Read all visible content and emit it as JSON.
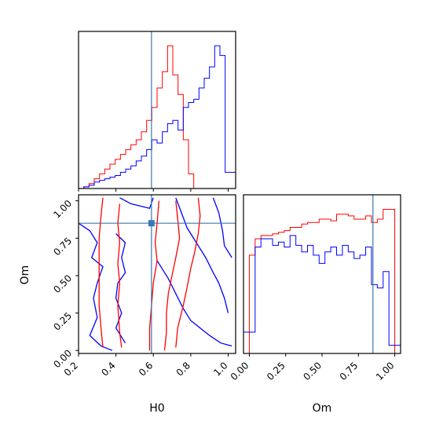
{
  "chart_data": [
    {
      "panel": "H0-marginal",
      "type": "histogram",
      "xlim": [
        0.2,
        1.04
      ],
      "bin_edges_start": 0.2,
      "bin_width": 0.028,
      "series": [
        {
          "color": "#ff0000",
          "values": [
            0,
            0.01,
            0.03,
            0.06,
            0.09,
            0.12,
            0.15,
            0.18,
            0.21,
            0.24,
            0.27,
            0.3,
            0.35,
            0.42,
            0.5,
            0.62,
            0.72,
            0.88,
            0.7,
            0.58,
            0.3,
            0.09,
            0,
            0,
            0,
            0,
            0,
            0,
            0,
            0
          ]
        },
        {
          "color": "#0000ff",
          "values": [
            0,
            0.01,
            0.02,
            0.04,
            0.05,
            0.06,
            0.07,
            0.08,
            0.1,
            0.12,
            0.14,
            0.17,
            0.2,
            0.24,
            0.3,
            0.28,
            0.35,
            0.4,
            0.42,
            0.36,
            0.5,
            0.53,
            0.55,
            0.62,
            0.68,
            0.75,
            0.88,
            0.82,
            0.1,
            0.1
          ]
        }
      ],
      "truth": 0.59
    },
    {
      "panel": "H0-Om-2d",
      "type": "contour",
      "xlabel": "H0",
      "ylabel": "Om",
      "xlim": [
        0.2,
        1.04
      ],
      "ylim": [
        -0.02,
        1.04
      ],
      "xticks": [
        "0.2",
        "0.4",
        "0.6",
        "0.8",
        "1.0"
      ],
      "yticks": [
        "0.00",
        "0.25",
        "0.50",
        "0.75",
        "1.00"
      ],
      "xtick_values": [
        0.2,
        0.4,
        0.6,
        0.8,
        1.0
      ],
      "ytick_values": [
        0,
        0.25,
        0.5,
        0.75,
        1.0
      ],
      "truth": [
        0.59,
        0.85
      ],
      "red_contours": [
        [
          [
            0.33,
            1.02
          ],
          [
            0.32,
            0.9
          ],
          [
            0.31,
            0.75
          ],
          [
            0.31,
            0.6
          ],
          [
            0.31,
            0.45
          ],
          [
            0.31,
            0.3
          ],
          [
            0.32,
            0.15
          ],
          [
            0.33,
            0.02
          ]
        ],
        [
          [
            0.42,
            0.98
          ],
          [
            0.41,
            0.85
          ],
          [
            0.42,
            0.72
          ],
          [
            0.41,
            0.58
          ],
          [
            0.42,
            0.45
          ],
          [
            0.41,
            0.3
          ],
          [
            0.42,
            0.12
          ],
          [
            0.43,
            0.02
          ]
        ],
        [
          [
            0.63,
            1.0
          ],
          [
            0.62,
            0.85
          ],
          [
            0.61,
            0.72
          ],
          [
            0.62,
            0.6
          ],
          [
            0.6,
            0.45
          ],
          [
            0.59,
            0.3
          ],
          [
            0.58,
            0.15
          ],
          [
            0.58,
            0.0
          ]
        ],
        [
          [
            0.72,
            1.0
          ],
          [
            0.73,
            0.88
          ],
          [
            0.74,
            0.75
          ],
          [
            0.72,
            0.62
          ],
          [
            0.7,
            0.5
          ],
          [
            0.68,
            0.38
          ],
          [
            0.67,
            0.25
          ],
          [
            0.67,
            0.12
          ],
          [
            0.66,
            0.0
          ]
        ],
        [
          [
            0.84,
            1.02
          ],
          [
            0.85,
            0.9
          ],
          [
            0.84,
            0.78
          ],
          [
            0.82,
            0.65
          ],
          [
            0.8,
            0.55
          ],
          [
            0.78,
            0.42
          ],
          [
            0.76,
            0.3
          ],
          [
            0.73,
            0.15
          ],
          [
            0.72,
            0.02
          ]
        ]
      ],
      "blue_contours": [
        [
          [
            0.2,
            0.85
          ],
          [
            0.26,
            0.8
          ],
          [
            0.3,
            0.72
          ],
          [
            0.27,
            0.62
          ],
          [
            0.33,
            0.56
          ],
          [
            0.3,
            0.45
          ],
          [
            0.28,
            0.35
          ],
          [
            0.3,
            0.22
          ],
          [
            0.26,
            0.1
          ],
          [
            0.32,
            0.03
          ],
          [
            0.38,
            0.0
          ]
        ],
        [
          [
            0.4,
            0.78
          ],
          [
            0.45,
            0.72
          ],
          [
            0.43,
            0.62
          ],
          [
            0.45,
            0.52
          ],
          [
            0.41,
            0.45
          ],
          [
            0.4,
            0.35
          ],
          [
            0.43,
            0.25
          ],
          [
            0.4,
            0.15
          ],
          [
            0.45,
            0.05
          ]
        ],
        [
          [
            0.72,
            1.02
          ],
          [
            0.75,
            0.92
          ],
          [
            0.78,
            0.82
          ],
          [
            0.83,
            0.72
          ],
          [
            0.88,
            0.62
          ],
          [
            0.92,
            0.52
          ],
          [
            0.95,
            0.45
          ],
          [
            0.98,
            0.35
          ],
          [
            1.0,
            0.25
          ]
        ],
        [
          [
            0.62,
            0.6
          ],
          [
            0.68,
            0.48
          ],
          [
            0.72,
            0.38
          ],
          [
            0.76,
            0.28
          ],
          [
            0.8,
            0.2
          ],
          [
            0.85,
            0.15
          ],
          [
            0.9,
            0.1
          ],
          [
            0.96,
            0.05
          ],
          [
            1.02,
            0.03
          ]
        ],
        [
          [
            0.6,
            1.02
          ],
          [
            0.58,
            0.95
          ],
          [
            0.48,
            0.98
          ],
          [
            0.42,
            1.02
          ]
        ],
        [
          [
            0.92,
            1.02
          ],
          [
            0.95,
            0.92
          ],
          [
            0.97,
            0.8
          ],
          [
            0.98,
            0.7
          ],
          [
            1.02,
            0.62
          ]
        ]
      ]
    },
    {
      "panel": "Om-marginal",
      "type": "histogram",
      "xlabel": "Om",
      "xlim": [
        -0.04,
        1.04
      ],
      "xticks": [
        "0.00",
        "0.25",
        "0.50",
        "0.75",
        "1.00"
      ],
      "xtick_values": [
        0,
        0.25,
        0.5,
        0.75,
        1.0
      ],
      "bin_edges_start": -0.04,
      "bin_width": 0.04,
      "series": [
        {
          "color": "#ff0000",
          "values": [
            0,
            0.6,
            0.7,
            0.72,
            0.72,
            0.73,
            0.74,
            0.75,
            0.77,
            0.77,
            0.79,
            0.8,
            0.8,
            0.82,
            0.82,
            0.81,
            0.85,
            0.85,
            0.84,
            0.82,
            0.82,
            0.84,
            0.8,
            0.82,
            0.88,
            0.88,
            0.0
          ]
        },
        {
          "color": "#0000ff",
          "values": [
            0.13,
            0.13,
            0.65,
            0.7,
            0.7,
            0.66,
            0.68,
            0.65,
            0.72,
            0.66,
            0.62,
            0.66,
            0.6,
            0.55,
            0.62,
            0.65,
            0.6,
            0.66,
            0.62,
            0.58,
            0.6,
            0.65,
            0.42,
            0.4,
            0.5,
            0.05,
            0.05
          ]
        }
      ],
      "truth": 0.85
    }
  ]
}
